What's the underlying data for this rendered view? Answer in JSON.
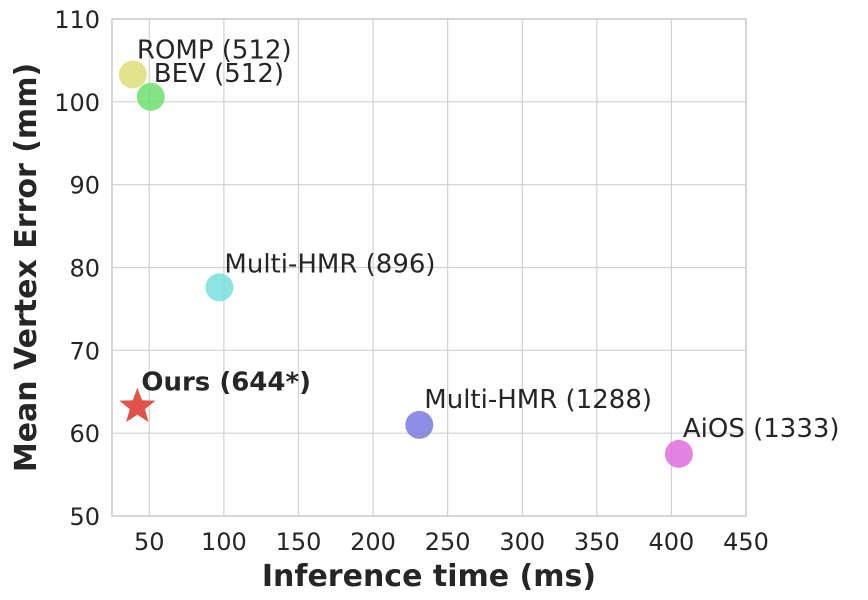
{
  "chart_data": {
    "type": "scatter",
    "xlabel": "Inference time (ms)",
    "ylabel": "Mean Vertex Error (mm)",
    "xlim": [
      25,
      450
    ],
    "ylim": [
      50,
      110
    ],
    "xticks": [
      50,
      100,
      150,
      200,
      250,
      300,
      350,
      400,
      450
    ],
    "yticks": [
      50,
      60,
      70,
      80,
      90,
      100,
      110
    ],
    "grid": true,
    "points": [
      {
        "label": "ROMP (512)",
        "x": 39,
        "y": 103.3,
        "color": "#dede7a",
        "marker": "circle",
        "bold": false
      },
      {
        "label": "BEV (512)",
        "x": 51,
        "y": 100.6,
        "color": "#6ddf6d",
        "marker": "circle",
        "bold": false
      },
      {
        "label": "Multi-HMR (896)",
        "x": 97,
        "y": 77.6,
        "color": "#7adede",
        "marker": "circle",
        "bold": false
      },
      {
        "label": "Ours (644*)",
        "x": 42,
        "y": 63.2,
        "color": "#e0524a",
        "marker": "star",
        "bold": true
      },
      {
        "label": "Multi-HMR (1288)",
        "x": 231,
        "y": 61.0,
        "color": "#7a7ae0",
        "marker": "circle",
        "bold": false
      },
      {
        "label": "AiOS (1333)",
        "x": 405,
        "y": 57.5,
        "color": "#df6ddf",
        "marker": "circle",
        "bold": false
      }
    ]
  }
}
